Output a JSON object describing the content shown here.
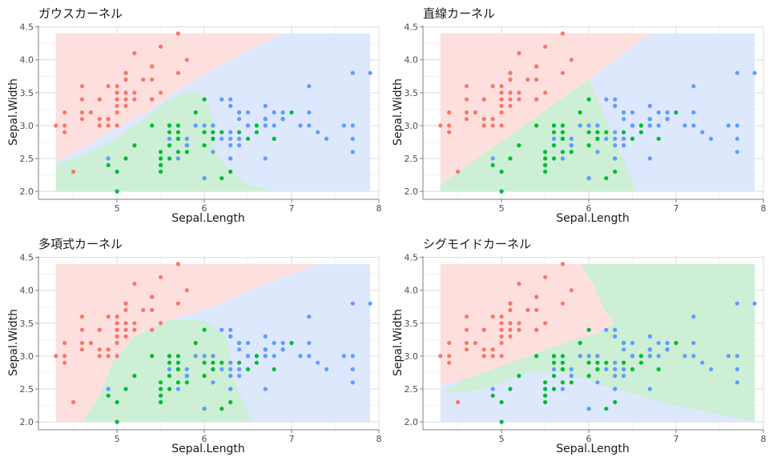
{
  "colors": {
    "setosa": "#F8766D",
    "versicolor": "#00BA38",
    "virginica": "#619CFF",
    "setosa_region": "#FDE0DE",
    "versicolor_region": "#CCEFD5",
    "virginica_region": "#DDE8FD",
    "grid": "#DCDCDC"
  },
  "chart_data": [
    {
      "type": "scatter",
      "title": "ガウスカーネル",
      "xlabel": "Sepal.Length",
      "ylabel": "Sepal.Width",
      "xlim": [
        4.3,
        7.9
      ],
      "ylim": [
        2.0,
        4.4
      ],
      "xticks": [
        5,
        6,
        7,
        8
      ],
      "yticks": [
        "2.0",
        "2.5",
        "3.0",
        "3.5",
        "4.0",
        "4.5"
      ],
      "grid": true,
      "regions": [
        {
          "class": "virginica",
          "polygon": [
            [
              4.3,
              2.0
            ],
            [
              7.9,
              2.0
            ],
            [
              7.9,
              4.4
            ],
            [
              4.3,
              4.4
            ]
          ]
        },
        {
          "class": "setosa",
          "polygon": [
            [
              4.3,
              4.4
            ],
            [
              6.9,
              4.4
            ],
            [
              6.5,
              4.15
            ],
            [
              6.1,
              3.85
            ],
            [
              5.7,
              3.55
            ],
            [
              5.4,
              3.25
            ],
            [
              4.9,
              2.9
            ],
            [
              4.6,
              2.65
            ],
            [
              4.3,
              2.45
            ]
          ]
        },
        {
          "class": "versicolor",
          "polygon": [
            [
              4.3,
              2.0
            ],
            [
              6.8,
              2.0
            ],
            [
              6.5,
              2.1
            ],
            [
              6.3,
              2.3
            ],
            [
              6.15,
              2.55
            ],
            [
              6.1,
              2.8
            ],
            [
              6.1,
              3.1
            ],
            [
              6.05,
              3.3
            ],
            [
              5.95,
              3.5
            ],
            [
              5.75,
              3.5
            ],
            [
              5.55,
              3.35
            ],
            [
              5.3,
              3.1
            ],
            [
              5.05,
              2.85
            ],
            [
              4.7,
              2.6
            ],
            [
              4.3,
              2.4
            ]
          ]
        }
      ]
    },
    {
      "type": "scatter",
      "title": "直線カーネル",
      "xlabel": "Sepal.Length",
      "ylabel": "Sepal.Width",
      "xlim": [
        4.3,
        7.9
      ],
      "ylim": [
        2.0,
        4.4
      ],
      "xticks": [
        5,
        6,
        7,
        8
      ],
      "yticks": [
        "2.0",
        "2.5",
        "3.0",
        "3.5",
        "4.0",
        "4.5"
      ],
      "grid": true,
      "regions": [
        {
          "class": "virginica",
          "polygon": [
            [
              4.3,
              2.0
            ],
            [
              7.9,
              2.0
            ],
            [
              7.9,
              4.4
            ],
            [
              4.3,
              4.4
            ]
          ]
        },
        {
          "class": "setosa",
          "polygon": [
            [
              4.3,
              4.4
            ],
            [
              6.7,
              4.4
            ],
            [
              6.0,
              3.7
            ],
            [
              4.3,
              2.1
            ]
          ]
        },
        {
          "class": "versicolor",
          "polygon": [
            [
              4.3,
              2.0
            ],
            [
              6.55,
              2.0
            ],
            [
              6.0,
              3.7
            ],
            [
              4.3,
              2.1
            ]
          ]
        }
      ]
    },
    {
      "type": "scatter",
      "title": "多項式カーネル",
      "xlabel": "Sepal.Length",
      "ylabel": "Sepal.Width",
      "xlim": [
        4.3,
        7.9
      ],
      "ylim": [
        2.0,
        4.4
      ],
      "xticks": [
        5,
        6,
        7,
        8
      ],
      "yticks": [
        "2.0",
        "2.5",
        "3.0",
        "3.5",
        "4.0",
        "4.5"
      ],
      "grid": true,
      "regions": [
        {
          "class": "virginica",
          "polygon": [
            [
              4.3,
              2.0
            ],
            [
              7.9,
              2.0
            ],
            [
              7.9,
              4.4
            ],
            [
              4.3,
              4.4
            ]
          ]
        },
        {
          "class": "setosa",
          "polygon": [
            [
              4.3,
              4.4
            ],
            [
              7.3,
              4.4
            ],
            [
              6.7,
              4.1
            ],
            [
              6.1,
              3.75
            ],
            [
              5.6,
              3.55
            ],
            [
              5.2,
              3.3
            ],
            [
              4.95,
              2.9
            ],
            [
              4.8,
              2.4
            ],
            [
              4.6,
              2.0
            ],
            [
              4.3,
              2.0
            ]
          ]
        },
        {
          "class": "versicolor",
          "polygon": [
            [
              4.6,
              2.0
            ],
            [
              6.55,
              2.0
            ],
            [
              6.45,
              2.3
            ],
            [
              6.35,
              2.6
            ],
            [
              6.3,
              3.0
            ],
            [
              6.25,
              3.3
            ],
            [
              6.0,
              3.55
            ],
            [
              5.6,
              3.55
            ],
            [
              5.2,
              3.3
            ],
            [
              4.95,
              2.9
            ],
            [
              4.8,
              2.4
            ]
          ]
        }
      ]
    },
    {
      "type": "scatter",
      "title": "シグモイドカーネル",
      "xlabel": "Sepal.Length",
      "ylabel": "Sepal.Width",
      "xlim": [
        4.3,
        7.9
      ],
      "ylim": [
        2.0,
        4.4
      ],
      "xticks": [
        5,
        6,
        7,
        8
      ],
      "yticks": [
        "2.0",
        "2.5",
        "3.0",
        "3.5",
        "4.0",
        "4.5"
      ],
      "grid": true,
      "regions": [
        {
          "class": "virginica",
          "polygon": [
            [
              4.3,
              2.0
            ],
            [
              7.9,
              2.0
            ],
            [
              7.9,
              4.4
            ],
            [
              4.3,
              4.4
            ]
          ]
        },
        {
          "class": "setosa",
          "polygon": [
            [
              4.3,
              4.4
            ],
            [
              5.9,
              4.4
            ],
            [
              6.05,
              4.1
            ],
            [
              6.2,
              3.65
            ],
            [
              6.3,
              3.5
            ],
            [
              6.1,
              3.35
            ],
            [
              5.6,
              3.15
            ],
            [
              5.0,
              2.85
            ],
            [
              4.6,
              2.65
            ],
            [
              4.3,
              2.55
            ]
          ]
        },
        {
          "class": "versicolor",
          "polygon": [
            [
              4.3,
              2.45
            ],
            [
              4.6,
              2.65
            ],
            [
              5.0,
              2.85
            ],
            [
              5.6,
              3.15
            ],
            [
              6.1,
              3.35
            ],
            [
              6.3,
              3.5
            ],
            [
              7.9,
              3.5
            ],
            [
              7.9,
              2.0
            ],
            [
              7.0,
              2.25
            ],
            [
              6.3,
              2.5
            ],
            [
              5.7,
              2.75
            ],
            [
              5.3,
              2.75
            ],
            [
              4.9,
              2.55
            ],
            [
              4.6,
              2.45
            ]
          ]
        },
        {
          "class": "versicolor",
          "polygon": [
            [
              5.9,
              4.4
            ],
            [
              7.9,
              4.4
            ],
            [
              7.9,
              3.5
            ],
            [
              6.3,
              3.5
            ],
            [
              6.2,
              3.65
            ],
            [
              6.05,
              4.1
            ]
          ]
        }
      ]
    }
  ],
  "points": {
    "setosa": [
      [
        5.1,
        3.5
      ],
      [
        4.9,
        3.0
      ],
      [
        4.7,
        3.2
      ],
      [
        4.6,
        3.1
      ],
      [
        5.0,
        3.6
      ],
      [
        5.4,
        3.9
      ],
      [
        4.6,
        3.4
      ],
      [
        5.0,
        3.4
      ],
      [
        4.4,
        2.9
      ],
      [
        4.9,
        3.1
      ],
      [
        5.4,
        3.7
      ],
      [
        4.8,
        3.4
      ],
      [
        4.8,
        3.0
      ],
      [
        4.3,
        3.0
      ],
      [
        5.8,
        4.0
      ],
      [
        5.7,
        4.4
      ],
      [
        5.4,
        3.9
      ],
      [
        5.1,
        3.5
      ],
      [
        5.7,
        3.8
      ],
      [
        5.1,
        3.8
      ],
      [
        5.4,
        3.4
      ],
      [
        5.1,
        3.7
      ],
      [
        4.6,
        3.6
      ],
      [
        5.1,
        3.3
      ],
      [
        4.8,
        3.4
      ],
      [
        5.0,
        3.0
      ],
      [
        5.0,
        3.4
      ],
      [
        5.2,
        3.5
      ],
      [
        5.2,
        3.4
      ],
      [
        4.7,
        3.2
      ],
      [
        4.8,
        3.1
      ],
      [
        5.4,
        3.4
      ],
      [
        5.2,
        4.1
      ],
      [
        5.5,
        4.2
      ],
      [
        4.9,
        3.1
      ],
      [
        5.0,
        3.2
      ],
      [
        5.5,
        3.5
      ],
      [
        4.9,
        3.6
      ],
      [
        4.4,
        3.0
      ],
      [
        5.1,
        3.4
      ],
      [
        5.0,
        3.5
      ],
      [
        4.5,
        2.3
      ],
      [
        4.4,
        3.2
      ],
      [
        5.0,
        3.5
      ],
      [
        5.1,
        3.8
      ],
      [
        4.8,
        3.0
      ],
      [
        5.1,
        3.8
      ],
      [
        4.6,
        3.2
      ],
      [
        5.3,
        3.7
      ],
      [
        5.0,
        3.3
      ]
    ],
    "versicolor": [
      [
        7.0,
        3.2
      ],
      [
        6.4,
        3.2
      ],
      [
        6.9,
        3.1
      ],
      [
        5.5,
        2.3
      ],
      [
        6.5,
        2.8
      ],
      [
        5.7,
        2.8
      ],
      [
        6.3,
        3.3
      ],
      [
        4.9,
        2.4
      ],
      [
        6.6,
        2.9
      ],
      [
        5.2,
        2.7
      ],
      [
        5.0,
        2.0
      ],
      [
        5.9,
        3.0
      ],
      [
        6.0,
        2.2
      ],
      [
        6.1,
        2.9
      ],
      [
        5.6,
        2.9
      ],
      [
        6.7,
        3.1
      ],
      [
        5.6,
        3.0
      ],
      [
        5.8,
        2.7
      ],
      [
        6.2,
        2.2
      ],
      [
        5.6,
        2.5
      ],
      [
        5.9,
        3.2
      ],
      [
        6.1,
        2.8
      ],
      [
        6.3,
        2.5
      ],
      [
        6.1,
        2.8
      ],
      [
        6.4,
        2.9
      ],
      [
        6.6,
        3.0
      ],
      [
        6.8,
        2.8
      ],
      [
        6.7,
        3.0
      ],
      [
        6.0,
        2.9
      ],
      [
        5.7,
        2.6
      ],
      [
        5.5,
        2.4
      ],
      [
        5.5,
        2.4
      ],
      [
        5.8,
        2.7
      ],
      [
        6.0,
        2.7
      ],
      [
        5.4,
        3.0
      ],
      [
        6.0,
        3.4
      ],
      [
        6.7,
        3.1
      ],
      [
        6.3,
        2.3
      ],
      [
        5.6,
        3.0
      ],
      [
        5.5,
        2.5
      ],
      [
        5.5,
        2.6
      ],
      [
        6.1,
        3.0
      ],
      [
        5.8,
        2.6
      ],
      [
        5.0,
        2.3
      ],
      [
        5.6,
        2.7
      ],
      [
        5.7,
        3.0
      ],
      [
        5.7,
        2.9
      ],
      [
        6.2,
        2.9
      ],
      [
        5.1,
        2.5
      ],
      [
        5.7,
        2.8
      ]
    ],
    "virginica": [
      [
        6.3,
        3.3
      ],
      [
        5.8,
        2.7
      ],
      [
        7.1,
        3.0
      ],
      [
        6.3,
        2.9
      ],
      [
        6.5,
        3.0
      ],
      [
        7.6,
        3.0
      ],
      [
        4.9,
        2.5
      ],
      [
        7.3,
        2.9
      ],
      [
        6.7,
        2.5
      ],
      [
        7.2,
        3.6
      ],
      [
        6.5,
        3.2
      ],
      [
        6.4,
        2.7
      ],
      [
        6.8,
        3.0
      ],
      [
        5.7,
        2.5
      ],
      [
        5.8,
        2.8
      ],
      [
        6.4,
        3.2
      ],
      [
        6.5,
        3.0
      ],
      [
        7.7,
        3.8
      ],
      [
        7.7,
        2.6
      ],
      [
        6.0,
        2.2
      ],
      [
        6.9,
        3.2
      ],
      [
        5.6,
        2.8
      ],
      [
        7.7,
        2.8
      ],
      [
        6.3,
        2.7
      ],
      [
        6.7,
        3.3
      ],
      [
        7.2,
        3.2
      ],
      [
        6.2,
        2.8
      ],
      [
        6.1,
        3.0
      ],
      [
        6.4,
        2.8
      ],
      [
        7.2,
        3.0
      ],
      [
        7.4,
        2.8
      ],
      [
        7.9,
        3.8
      ],
      [
        6.4,
        2.8
      ],
      [
        6.3,
        2.8
      ],
      [
        6.1,
        2.6
      ],
      [
        7.7,
        3.0
      ],
      [
        6.3,
        3.4
      ],
      [
        6.4,
        3.1
      ],
      [
        6.0,
        3.0
      ],
      [
        6.9,
        3.1
      ],
      [
        6.7,
        3.1
      ],
      [
        6.9,
        3.1
      ],
      [
        5.8,
        2.7
      ],
      [
        6.8,
        3.2
      ],
      [
        6.7,
        3.3
      ],
      [
        6.7,
        3.0
      ],
      [
        6.3,
        2.5
      ],
      [
        6.5,
        3.0
      ],
      [
        6.2,
        3.4
      ],
      [
        5.9,
        3.0
      ]
    ]
  }
}
